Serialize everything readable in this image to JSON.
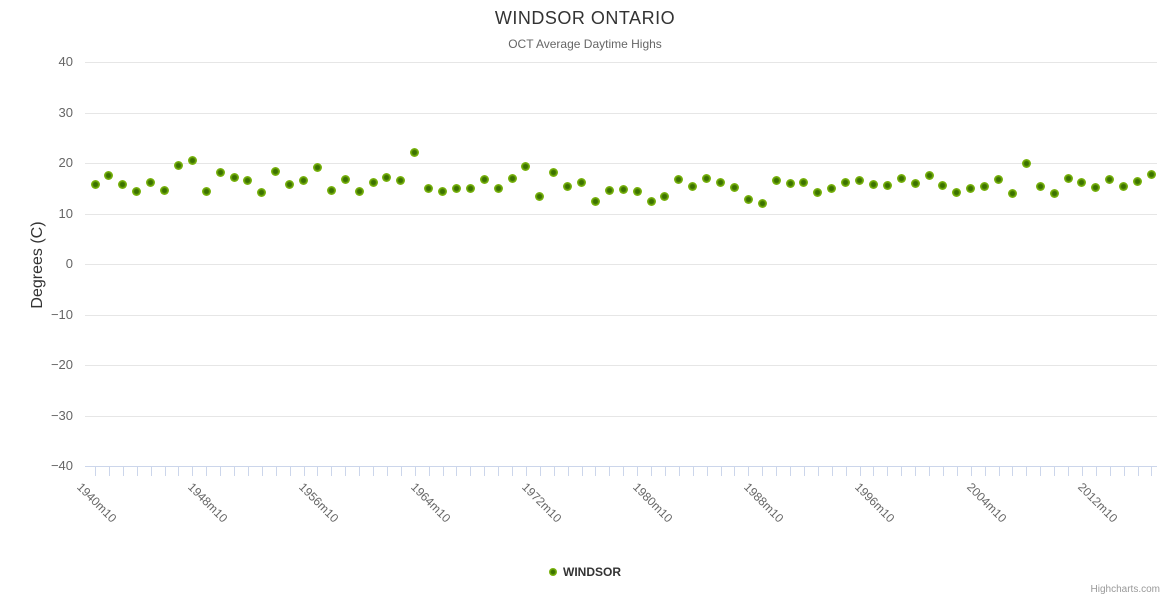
{
  "header": {
    "title": "WINDSOR ONTARIO",
    "subtitle": "OCT Average Daytime Highs"
  },
  "y_axis": {
    "title": "Degrees (C)",
    "tick_labels": [
      "40",
      "30",
      "20",
      "10",
      "0",
      "−10",
      "−20",
      "−30",
      "−40"
    ],
    "tick_values": [
      40,
      30,
      20,
      10,
      0,
      -10,
      -20,
      -30,
      -40
    ]
  },
  "x_axis": {
    "labeled_ticks": [
      {
        "year": 1940,
        "label": "1940m10"
      },
      {
        "year": 1948,
        "label": "1948m10"
      },
      {
        "year": 1956,
        "label": "1956m10"
      },
      {
        "year": 1964,
        "label": "1964m10"
      },
      {
        "year": 1972,
        "label": "1972m10"
      },
      {
        "year": 1980,
        "label": "1980m10"
      },
      {
        "year": 1988,
        "label": "1988m10"
      },
      {
        "year": 1996,
        "label": "1996m10"
      },
      {
        "year": 2004,
        "label": "2004m10"
      },
      {
        "year": 2012,
        "label": "2012m10"
      }
    ]
  },
  "legend": {
    "label": "WINDSOR"
  },
  "credit": "Highcharts.com",
  "colors": {
    "marker_outer": "#87c117",
    "marker_mid": "#76b00c",
    "marker_center": "#3b7200",
    "grid": "#e6e6e6",
    "axis": "#ccd6eb",
    "title_text": "#333333",
    "muted_text": "#666666",
    "credit_text": "#999999"
  },
  "chart_data": {
    "type": "scatter",
    "title": "WINDSOR ONTARIO",
    "subtitle": "OCT Average Daytime Highs",
    "xlabel": "",
    "ylabel": "Degrees (C)",
    "ylim": [
      -40,
      40
    ],
    "ytick_step": 10,
    "grid": true,
    "legend_position": "bottom-center",
    "x_tick_interval_years": 1,
    "x_label_interval_years": 8,
    "series": [
      {
        "name": "WINDSOR",
        "x": [
          1940,
          1941,
          1942,
          1943,
          1944,
          1945,
          1946,
          1947,
          1948,
          1949,
          1950,
          1951,
          1952,
          1953,
          1954,
          1955,
          1956,
          1957,
          1958,
          1959,
          1960,
          1961,
          1962,
          1963,
          1964,
          1965,
          1966,
          1967,
          1968,
          1969,
          1970,
          1971,
          1972,
          1973,
          1974,
          1975,
          1976,
          1977,
          1978,
          1979,
          1980,
          1981,
          1982,
          1983,
          1984,
          1985,
          1986,
          1987,
          1988,
          1989,
          1990,
          1991,
          1992,
          1993,
          1994,
          1995,
          1996,
          1997,
          1998,
          1999,
          2000,
          2001,
          2002,
          2003,
          2004,
          2005,
          2006,
          2007,
          2008,
          2009,
          2010,
          2011,
          2012,
          2013,
          2014,
          2015,
          2016
        ],
        "values": [
          15.8,
          17.5,
          15.8,
          14.3,
          16.2,
          14.5,
          19.6,
          20.4,
          14.3,
          18.2,
          17.2,
          16.6,
          14.1,
          18.4,
          15.8,
          16.6,
          19.2,
          14.5,
          16.8,
          14.3,
          16.2,
          17.2,
          16.6,
          22.0,
          15.0,
          14.3,
          15.0,
          15.0,
          16.8,
          14.9,
          17.0,
          19.4,
          13.3,
          18.2,
          15.4,
          16.2,
          12.3,
          14.5,
          14.7,
          14.3,
          12.3,
          13.3,
          16.8,
          15.4,
          17.0,
          16.2,
          15.2,
          12.7,
          11.9,
          16.6,
          16.0,
          16.2,
          14.1,
          14.9,
          16.2,
          16.6,
          15.8,
          15.6,
          17.0,
          16.0,
          17.5,
          15.6,
          14.1,
          15.0,
          15.4,
          16.8,
          13.9,
          20.0,
          15.4,
          13.9,
          17.0,
          16.2,
          15.2,
          16.8,
          15.4,
          16.4,
          17.8
        ]
      }
    ]
  }
}
